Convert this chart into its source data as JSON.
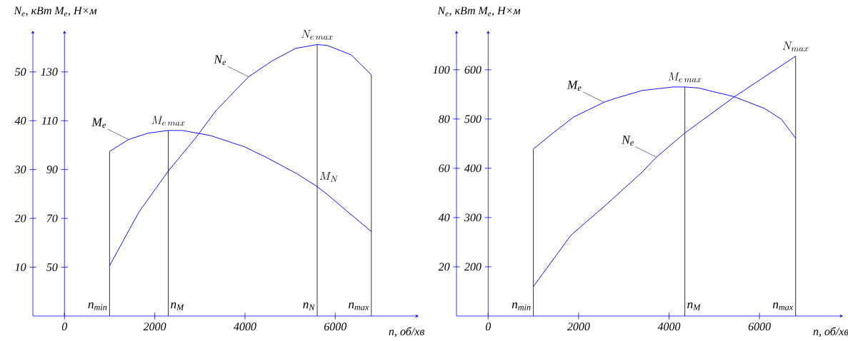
{
  "chart_data": [
    {
      "type": "line",
      "xlabel": "n, об/хв",
      "ylabel": "N$_{e}$, кВт",
      "y2label": "M$_{e}$, Н×м",
      "xlim": [
        -700,
        7800
      ],
      "xticks": [
        0,
        2000,
        4000,
        6000
      ],
      "ylim": [
        0,
        58
      ],
      "yticks": [
        10,
        20,
        30,
        40,
        50
      ],
      "y2lim": [
        30,
        146
      ],
      "y2ticks": [
        50,
        70,
        90,
        110,
        130
      ],
      "series": [
        {
          "name": "N$_{e}$",
          "color": "#0000ff",
          "x": [
            1000,
            1650,
            2300,
            2900,
            3360,
            4080,
            4610,
            5120,
            5600,
            5830,
            6350,
            6800
          ],
          "values": [
            10.3,
            21.3,
            29.7,
            36.4,
            42.1,
            49,
            52.3,
            54.8,
            55.6,
            55.4,
            53.5,
            49.4
          ]
        },
        {
          "name": "M$_{e}$",
          "color": "#0000ff",
          "axis": "y2",
          "x": [
            1000,
            1420,
            1850,
            2300,
            2620,
            3240,
            3990,
            4480,
            5150,
            5600,
            5830,
            6250,
            6800
          ],
          "values": [
            97.4,
            102.3,
            104.9,
            106,
            106,
            103.9,
            99.3,
            94.9,
            88.3,
            83,
            79.7,
            73.1,
            64.6
          ]
        }
      ],
      "ref_lines": [
        {
          "axis": "x",
          "value": 1000,
          "label": "n$_{min}$",
          "color": "#000000"
        },
        {
          "axis": "x",
          "value": 2300,
          "label": "n$_{M}$",
          "color": "#000000"
        },
        {
          "axis": "x",
          "value": 5600,
          "label": "n$_{N}$",
          "color": "#000000"
        },
        {
          "axis": "x",
          "value": 6800,
          "label": "n$_{max}$",
          "color": "#000000"
        }
      ],
      "annotations": [
        {
          "text": "N_{e\\,max}",
          "x": 5600,
          "y": 55.6
        },
        {
          "text": "M_{e\\,max}",
          "x": 2300,
          "y": 38
        },
        {
          "text": "M_{N}",
          "x": 5600,
          "y": 26.5
        }
      ]
    },
    {
      "type": "line",
      "xlabel": "n, об/хв",
      "ylabel": "N$_{e}$, кВт",
      "y2label": "M$_{e}$, Н×м",
      "xlim": [
        -700,
        7800
      ],
      "xticks": [
        0,
        2000,
        4000,
        6000
      ],
      "ylim": [
        0,
        115
      ],
      "yticks": [
        20,
        40,
        60,
        80,
        100
      ],
      "y2lim": [
        100,
        675
      ],
      "y2ticks": [
        200,
        300,
        400,
        500,
        600
      ],
      "series": [
        {
          "name": "N$_{e}$",
          "color": "#0000ff",
          "x": [
            1000,
            1830,
            2620,
            3410,
            3720,
            4350,
            5450,
            6800
          ],
          "values": [
            12,
            32.8,
            45.4,
            58.5,
            64.5,
            74.3,
            89.1,
            105.5
          ]
        },
        {
          "name": "M$_{e}$",
          "color": "#0000ff",
          "axis": "y2",
          "x": [
            1000,
            1440,
            1890,
            2560,
            2850,
            3410,
            4090,
            4350,
            4650,
            5450,
            6120,
            6490,
            6800
          ],
          "values": [
            439,
            472,
            504,
            534,
            543,
            558,
            565,
            565,
            563,
            545,
            521,
            499,
            461
          ]
        }
      ],
      "ref_lines": [
        {
          "axis": "x",
          "value": 1000,
          "label": "n$_{min}$",
          "color": "#000000"
        },
        {
          "axis": "x",
          "value": 4350,
          "label": "n$_{M}$",
          "color": "#000000"
        },
        {
          "axis": "x",
          "value": 6800,
          "label": "n$_{max}$",
          "color": "#000000"
        }
      ],
      "annotations": [
        {
          "text": "M_{e\\,max}",
          "x": 4350,
          "y": 93
        },
        {
          "text": "N_{max}",
          "x": 6800,
          "y": 105.5
        }
      ]
    }
  ]
}
